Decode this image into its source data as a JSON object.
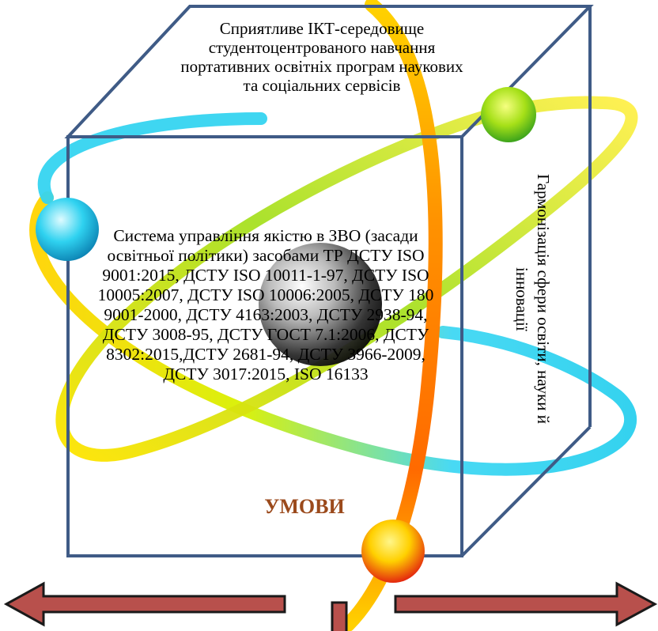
{
  "diagram": {
    "top_face_text": "Сприятливе ІКТ-середовище студентоцентрованого навчання портативних освітніх програм наукових та соціальних сервісів",
    "front_face_text": "Система управління якістю в ЗВО (засади освітньої політики) засобами ТР ДСТУ ISO 9001:2015, ДСТУ ISO 10011-1-97, ДСТУ ISO 10005:2007, ДСТУ ISO 10006:2005, ДСТУ 180 9001-2000, ДСТУ 4163:2003, ДСТУ 2938-94, ДСТУ 3008-95, ДСТУ ГОСТ 7.1:2006, ДСТУ 8302:2015,ДСТУ 2681-94, ДСТУ 3966-2009, ДСТУ 3017:2015, ISO 16133",
    "side_face_text": "Гармонізація сфери освіти, науки й інновації",
    "conditions_label": "УМОВИ"
  },
  "colors": {
    "cube_edge": "#3f5b86",
    "label_brown": "#9b4a1c",
    "arrow_fill": "#b8504c",
    "arrow_stroke": "#1a1a1a",
    "orbit_cyan": "#33d6f2",
    "orbit_green": "#7ed321",
    "orbit_yellow": "#ffe600",
    "orbit_orange": "#ff7a00"
  },
  "icons": [
    "nucleus-sphere",
    "cyan-electron",
    "green-electron",
    "red-electron",
    "left-arrow",
    "right-arrow",
    "down-stem"
  ]
}
